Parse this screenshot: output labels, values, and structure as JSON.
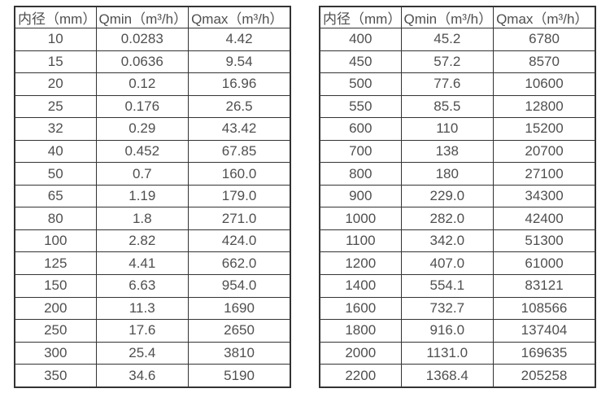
{
  "colors": {
    "border": "#333333",
    "text": "#4f4f4f",
    "background": "#ffffff"
  },
  "columns": [
    "内径（mm）",
    "Qmin（m³/h）",
    "Qmax（m³/h）"
  ],
  "tables": [
    {
      "name": "small-diameters",
      "rows": [
        [
          "10",
          "0.0283",
          "4.42"
        ],
        [
          "15",
          "0.0636",
          "9.54"
        ],
        [
          "20",
          "0.12",
          "16.96"
        ],
        [
          "25",
          "0.176",
          "26.5"
        ],
        [
          "32",
          "0.29",
          "43.42"
        ],
        [
          "40",
          "0.452",
          "67.85"
        ],
        [
          "50",
          "0.7",
          "160.0"
        ],
        [
          "65",
          "1.19",
          "179.0"
        ],
        [
          "80",
          "1.8",
          "271.0"
        ],
        [
          "100",
          "2.82",
          "424.0"
        ],
        [
          "125",
          "4.41",
          "662.0"
        ],
        [
          "150",
          "6.63",
          "954.0"
        ],
        [
          "200",
          "11.3",
          "1690"
        ],
        [
          "250",
          "17.6",
          "2650"
        ],
        [
          "300",
          "25.4",
          "3810"
        ],
        [
          "350",
          "34.6",
          "5190"
        ]
      ]
    },
    {
      "name": "large-diameters",
      "rows": [
        [
          "400",
          "45.2",
          "6780"
        ],
        [
          "450",
          "57.2",
          "8570"
        ],
        [
          "500",
          "77.6",
          "10600"
        ],
        [
          "550",
          "85.5",
          "12800"
        ],
        [
          "600",
          "110",
          "15200"
        ],
        [
          "700",
          "138",
          "20700"
        ],
        [
          "800",
          "180",
          "27100"
        ],
        [
          "900",
          "229.0",
          "34300"
        ],
        [
          "1000",
          "282.0",
          "42400"
        ],
        [
          "1100",
          "342.0",
          "51300"
        ],
        [
          "1200",
          "407.0",
          "61000"
        ],
        [
          "1400",
          "554.1",
          "83121"
        ],
        [
          "1600",
          "732.7",
          "108566"
        ],
        [
          "1800",
          "916.0",
          "137404"
        ],
        [
          "2000",
          "1131.0",
          "169635"
        ],
        [
          "2200",
          "1368.4",
          "205258"
        ]
      ]
    }
  ]
}
